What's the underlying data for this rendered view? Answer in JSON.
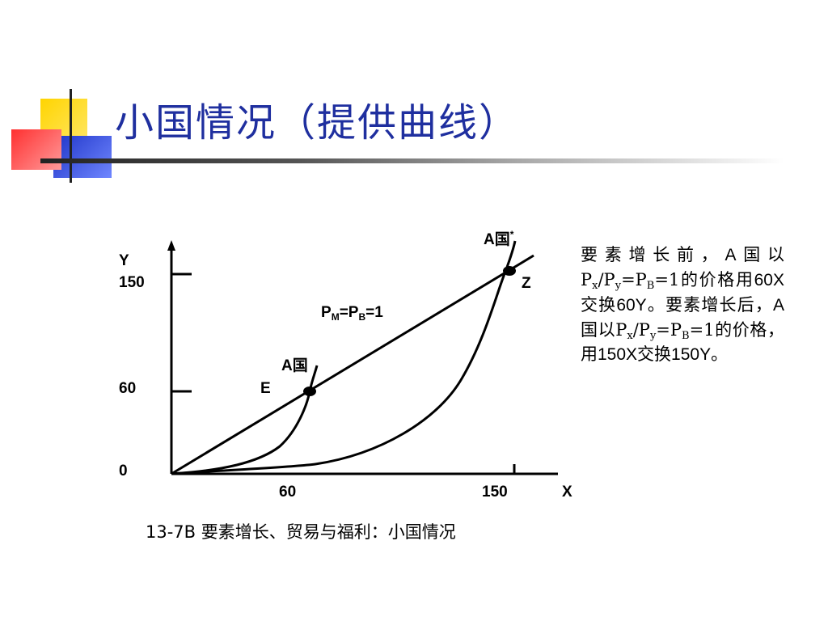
{
  "slide": {
    "title": "小国情况（提供曲线）",
    "caption": "13-7B 要素增长、贸易与福利：小国情况"
  },
  "diagram": {
    "y_axis_label": "Y",
    "x_axis_label": "X",
    "y_ticks": [
      "150",
      "60",
      "0"
    ],
    "x_ticks": [
      "60",
      "150"
    ],
    "price_line_label": {
      "p1": "P",
      "s1": "M",
      "eq1": "=P",
      "s2": "B",
      "eq2": "=1"
    },
    "offer_curve_before": "A国",
    "offer_curve_after": "A国",
    "offer_curve_after_mark": "*",
    "point_before": "E",
    "point_after": "Z"
  },
  "side_note": {
    "p1": "要素增长前，",
    "p2": "A国以",
    "p3": "P",
    "s_x": "x",
    "p4": "/P",
    "s_y": "y",
    "p5": "=P",
    "s_b": "B",
    "p6": "=1的价格用",
    "p7": "60X",
    "p8": "交换",
    "p9": "60Y",
    "p10": "。要素增长后，",
    "p11": "A",
    "p12": "国以",
    "p13": "P",
    "s_x2": "x",
    "p14": "/P",
    "s_y2": "y",
    "p15": "=P",
    "s_b2": "B",
    "p16": "=1的价格，用",
    "p17": "150X",
    "p18": "交换",
    "p19": "150Y",
    "p20": "。"
  },
  "colors": {
    "title": "#1f2f9f",
    "deco_yellow": "#ffd400",
    "deco_blue": "#2a3fcf",
    "deco_red": "#ff4a4a"
  }
}
